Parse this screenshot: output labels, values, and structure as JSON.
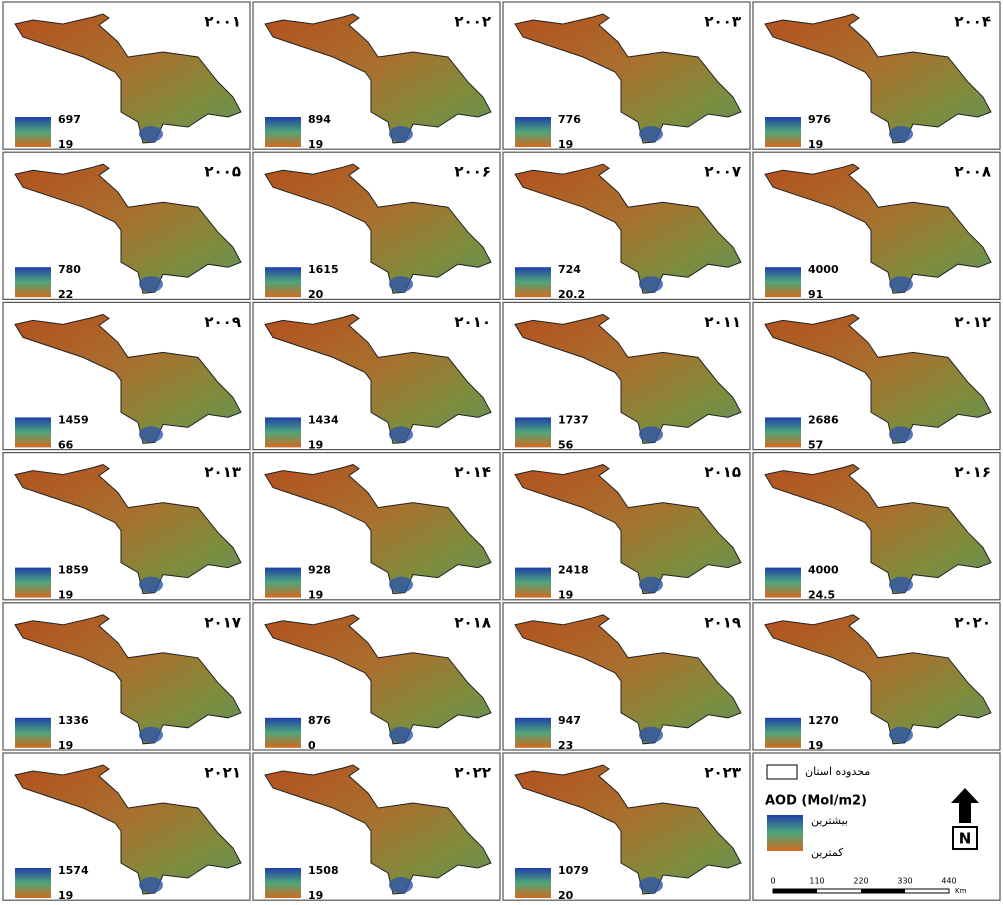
{
  "panels": [
    {
      "year": "۲۰۰۱",
      "max": 697,
      "min": 19
    },
    {
      "year": "۲۰۰۲",
      "max": 894,
      "min": 19
    },
    {
      "year": "۲۰۰۳",
      "max": 776,
      "min": 19
    },
    {
      "year": "۲۰۰۴",
      "max": 976,
      "min": 19
    },
    {
      "year": "۲۰۰۵",
      "max": 780,
      "min": 22
    },
    {
      "year": "۲۰۰۶",
      "max": 1615,
      "min": 20
    },
    {
      "year": "۲۰۰۷",
      "max": 724,
      "min": 20.2
    },
    {
      "year": "۲۰۰۸",
      "max": 4000,
      "min": 91
    },
    {
      "year": "۲۰۰۹",
      "max": 1459,
      "min": 66
    },
    {
      "year": "۲۰۱۰",
      "max": 1434,
      "min": 19
    },
    {
      "year": "۲۰۱۱",
      "max": 1737,
      "min": 56
    },
    {
      "year": "۲۰۱۲",
      "max": 2686,
      "min": 57
    },
    {
      "year": "۲۰۱۳",
      "max": 1859,
      "min": 19
    },
    {
      "year": "۲۰۱۴",
      "max": 928,
      "min": 19
    },
    {
      "year": "۲۰۱۵",
      "max": 2418,
      "min": 19
    },
    {
      "year": "۲۰۱۶",
      "max": 4000,
      "min": 24.5
    },
    {
      "year": "۲۰۱۷",
      "max": 1336,
      "min": 19
    },
    {
      "year": "۲۰۱۸",
      "max": 876,
      "min": 0
    },
    {
      "year": "۲۰۱۹",
      "max": 947,
      "min": 23
    },
    {
      "year": "۲۰۲۰",
      "max": 1270,
      "min": 19
    },
    {
      "year": "۲۰۲۱",
      "max": 1574,
      "min": 19
    },
    {
      "year": "۲۰۲۲",
      "max": 1508,
      "min": 19
    },
    {
      "year": "۲۰۲۳",
      "max": 1079,
      "min": 20
    }
  ],
  "legend": {
    "boundary": "محدوده استان",
    "title": "AOD (Mol/m2)",
    "high": "بیشترین",
    "low": "کمترین",
    "north": "N",
    "scale": [
      0,
      110,
      220,
      330,
      440
    ],
    "scale_unit": "Km"
  }
}
